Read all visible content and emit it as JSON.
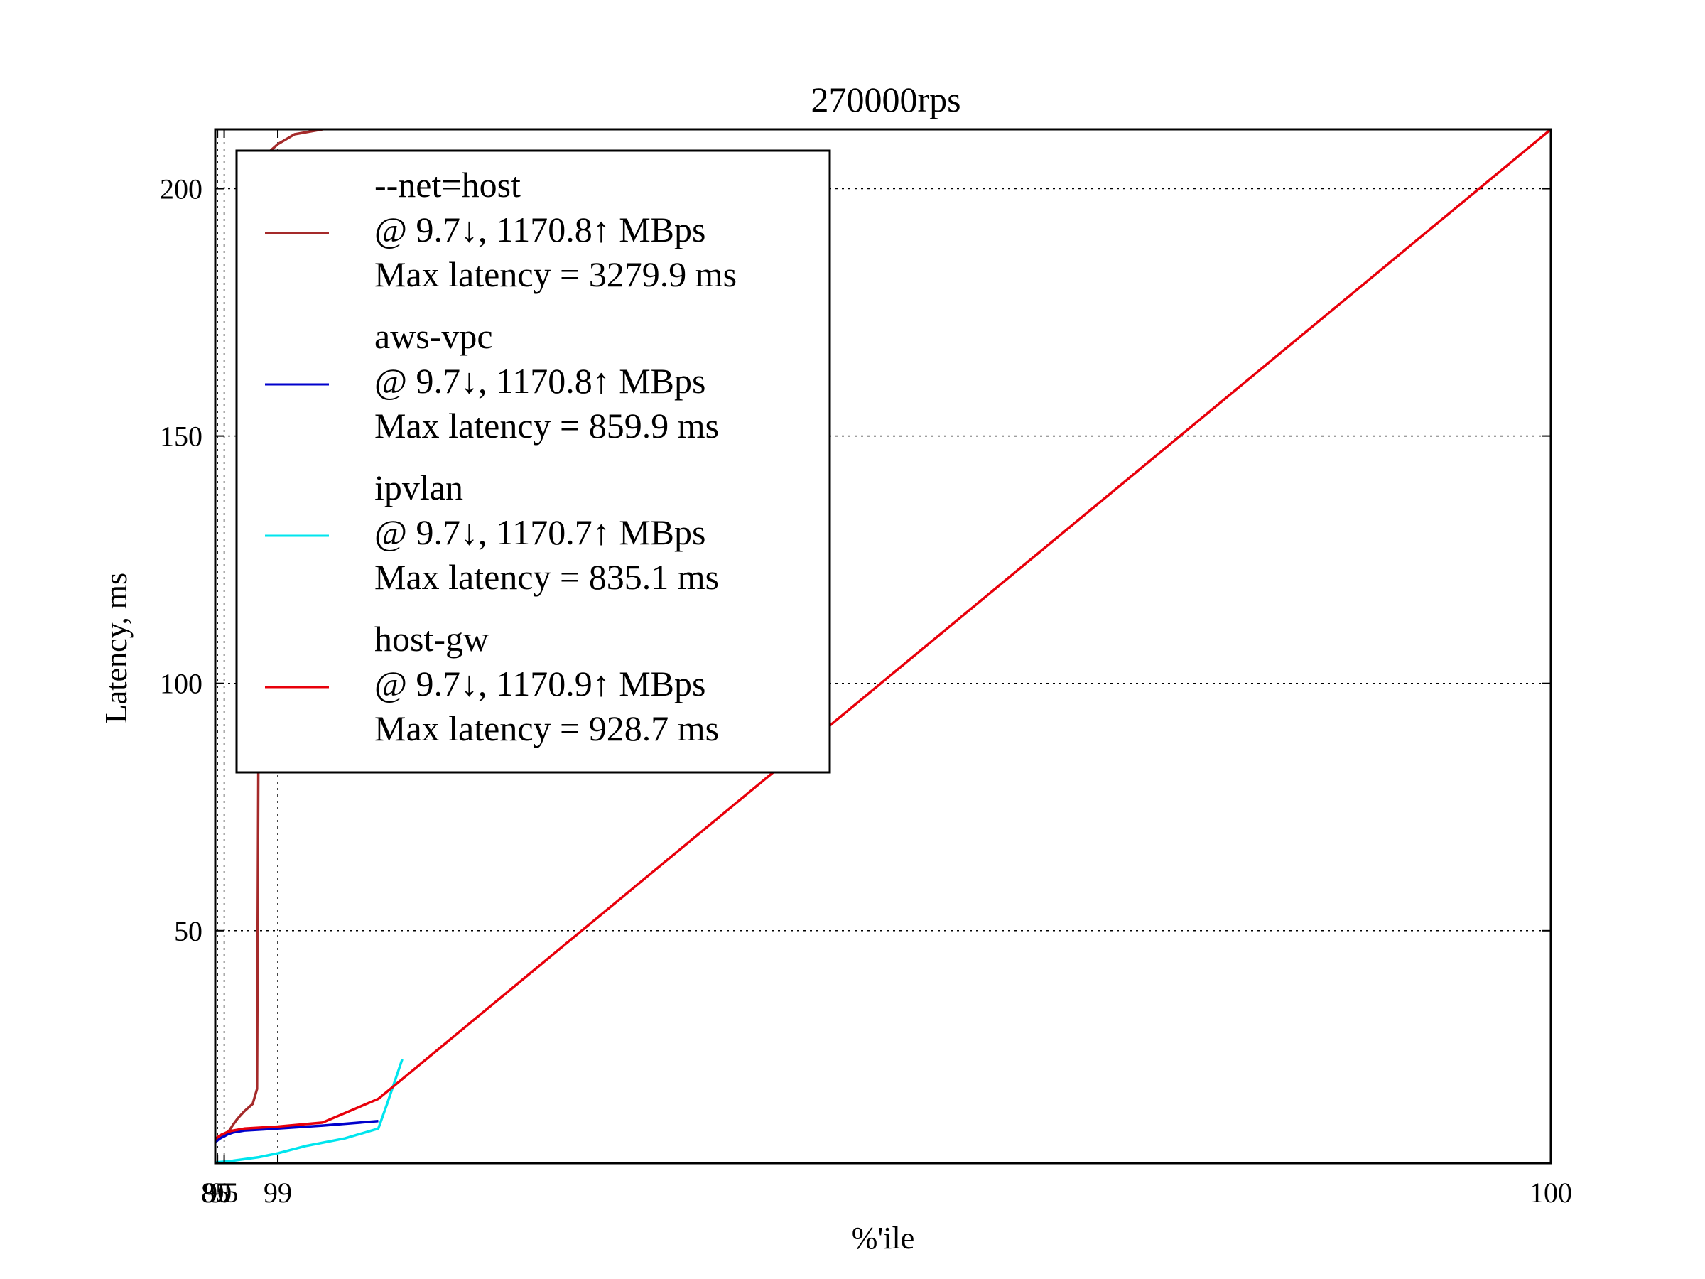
{
  "chart_data": {
    "type": "line",
    "title": "270000rps",
    "xlabel": "%'ile",
    "ylabel": "Latency, ms",
    "x_scale": "reciprocal (1/(100-p))",
    "xlim": [
      85,
      100
    ],
    "ylim": [
      3,
      212
    ],
    "x_ticks": [
      85,
      90,
      95,
      99,
      100
    ],
    "x_tick_labels": [
      "85",
      "90",
      "95",
      "99",
      "100"
    ],
    "y_ticks": [
      50,
      100,
      150,
      200
    ],
    "y_tick_labels": [
      "50",
      "100",
      "150",
      "200"
    ],
    "grid": true,
    "legend_position": "upper-left",
    "series": [
      {
        "name": "--net=host",
        "legend_lines": [
          "--net=host",
          "@ 9.7↓, 1170.8↑ MBps",
          "Max latency = 3279.9 ms"
        ],
        "color": "#a52a2a",
        "points": [
          [
            85,
            7.5
          ],
          [
            88,
            7.8
          ],
          [
            90,
            8.0
          ],
          [
            92,
            8.2
          ],
          [
            94,
            8.5
          ],
          [
            95,
            8.8
          ],
          [
            96,
            9.2
          ],
          [
            96.5,
            9.8
          ],
          [
            97,
            10.8
          ],
          [
            97.5,
            12.0
          ],
          [
            98,
            13.5
          ],
          [
            98.4,
            15.0
          ],
          [
            98.55,
            18.0
          ],
          [
            98.66,
            205
          ],
          [
            98.8,
            207
          ],
          [
            99.0,
            209
          ],
          [
            99.2,
            211
          ],
          [
            99.4,
            212
          ]
        ]
      },
      {
        "name": "aws-vpc",
        "legend_lines": [
          "aws-vpc",
          "@ 9.7↓, 1170.8↑ MBps",
          "Max latency = 859.9 ms"
        ],
        "color": "#0000cc",
        "points": [
          [
            85,
            7.2
          ],
          [
            88,
            7.4
          ],
          [
            90,
            7.6
          ],
          [
            92,
            7.9
          ],
          [
            94,
            8.2
          ],
          [
            95,
            8.4
          ],
          [
            96,
            8.8
          ],
          [
            97,
            9.2
          ],
          [
            98,
            9.6
          ],
          [
            99,
            10.0
          ],
          [
            99.4,
            10.6
          ],
          [
            99.6,
            11.5
          ]
        ]
      },
      {
        "name": "ipvlan",
        "legend_lines": [
          "ipvlan",
          "@ 9.7↓, 1170.7↑ MBps",
          "Max latency = 835.1 ms"
        ],
        "color": "#00e5ee",
        "points": [
          [
            85,
            3.2
          ],
          [
            90,
            3.2
          ],
          [
            95,
            3.3
          ],
          [
            97,
            3.5
          ],
          [
            98,
            3.8
          ],
          [
            98.6,
            4.2
          ],
          [
            99,
            5.0
          ],
          [
            99.3,
            6.5
          ],
          [
            99.5,
            8.0
          ],
          [
            99.6,
            10.0
          ],
          [
            99.62,
            15.0
          ],
          [
            99.65,
            24.0
          ]
        ]
      },
      {
        "name": "host-gw",
        "legend_lines": [
          "host-gw",
          "@ 9.7↓, 1170.9↑ MBps",
          "Max latency = 928.7 ms"
        ],
        "color": "#e8000b",
        "points": [
          [
            85,
            7.8
          ],
          [
            88,
            8.0
          ],
          [
            90,
            8.2
          ],
          [
            92,
            8.5
          ],
          [
            94,
            8.8
          ],
          [
            95,
            9.0
          ],
          [
            96,
            9.3
          ],
          [
            97,
            9.6
          ],
          [
            98,
            10.0
          ],
          [
            99,
            10.4
          ],
          [
            99.4,
            11.2
          ],
          [
            99.6,
            16.0
          ],
          [
            99.9,
            100
          ],
          [
            100,
            212
          ]
        ]
      }
    ]
  }
}
